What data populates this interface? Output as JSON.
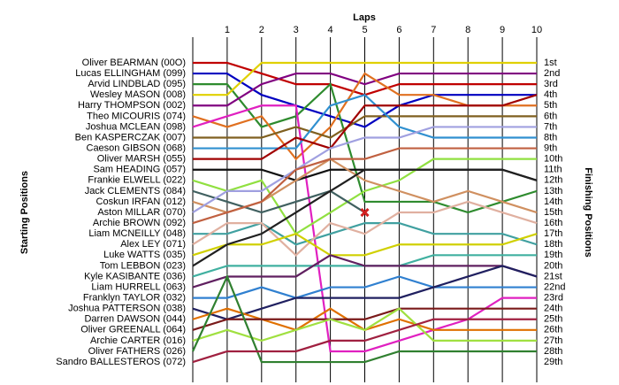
{
  "chart_data": {
    "type": "line",
    "x_label": "Laps",
    "y_label": "Starting Positions",
    "y2_label": "Finishing Positions",
    "x": [
      0,
      1,
      2,
      3,
      4,
      5,
      6,
      7,
      8,
      9,
      10
    ],
    "xlim": [
      0,
      10
    ],
    "xticks": [
      1,
      2,
      3,
      4,
      5,
      6,
      7,
      8,
      9,
      10
    ],
    "ylim": [
      30.9,
      -1.4
    ],
    "grid": true,
    "series": [
      {
        "name": "Oliver BEARMAN (00O)",
        "color": "#c00000",
        "values": [
          1,
          1,
          2,
          3,
          3,
          4,
          3,
          3,
          3,
          3,
          3
        ]
      },
      {
        "name": "Lucas ELLINGHAM (099)",
        "color": "#0000c0",
        "values": [
          2,
          2,
          4,
          5,
          6,
          7,
          5,
          4,
          4,
          4,
          4
        ]
      },
      {
        "name": "Arvid LINDBLAD (095)",
        "color": "#2e8b2e",
        "values": [
          3,
          3,
          7,
          6,
          3,
          14,
          14,
          14,
          15,
          14,
          13
        ]
      },
      {
        "name": "Wesley MASON (008)",
        "color": "#e0d000",
        "values": [
          4,
          4,
          1,
          1,
          1,
          1,
          1,
          1,
          1,
          1,
          1
        ]
      },
      {
        "name": "Harry THOMPSON (002)",
        "color": "#800080",
        "values": [
          5,
          5,
          3,
          2,
          2,
          3,
          2,
          2,
          2,
          2,
          2
        ]
      },
      {
        "name": "Theo MICOURIS (074)",
        "color": "#e07020",
        "values": [
          6,
          7,
          6,
          10,
          7,
          2,
          4,
          4,
          5,
          5,
          5
        ]
      },
      {
        "name": "Joshua MCLEAN (098)",
        "color": "#e020c0",
        "values": [
          7,
          6,
          5,
          5,
          28,
          28,
          27,
          26,
          25,
          23,
          23
        ]
      },
      {
        "name": "Ben KASPERCZAK (007)",
        "color": "#806020",
        "values": [
          8,
          8,
          8,
          7,
          8,
          6,
          6,
          6,
          6,
          6,
          6
        ]
      },
      {
        "name": "Caeson GIBSON (068)",
        "color": "#3090d0",
        "values": [
          9,
          9,
          9,
          9,
          5,
          4,
          7,
          8,
          8,
          8,
          8
        ]
      },
      {
        "name": "Oliver MARSH (055)",
        "color": "#a00000",
        "values": [
          10,
          10,
          10,
          8,
          9,
          5,
          5,
          5,
          5,
          5,
          4
        ]
      },
      {
        "name": "Sam HEADING (057)",
        "color": "#101010",
        "values": [
          11,
          11,
          11,
          12,
          11,
          11,
          11,
          11,
          11,
          11,
          12
        ]
      },
      {
        "name": "Frankie ELWELL (022)",
        "color": "#90e040",
        "values": [
          12,
          13,
          12,
          17,
          15,
          13,
          12,
          10,
          10,
          10,
          10
        ]
      },
      {
        "name": "Jack CLEMENTS (084)",
        "color": "#406060",
        "values": [
          13,
          14,
          15,
          14,
          13,
          15,
          null,
          null,
          null,
          null,
          null
        ]
      },
      {
        "name": "Coskun IRFAN (012)",
        "color": "#d09060",
        "values": [
          14,
          15,
          14,
          12,
          10,
          12,
          13,
          14,
          13,
          14,
          15
        ]
      },
      {
        "name": "Aston  MILLAR (070)",
        "color": "#a0a0e0",
        "values": [
          15,
          13,
          13,
          11,
          9,
          8,
          8,
          7,
          7,
          7,
          7
        ]
      },
      {
        "name": "Archie BROWN (092)",
        "color": "#c06040",
        "values": [
          16,
          15,
          14,
          11,
          10,
          10,
          9,
          9,
          9,
          9,
          9
        ]
      },
      {
        "name": "Liam MCNEILLY (048)",
        "color": "#40a0a0",
        "values": [
          17,
          17,
          16,
          18,
          17,
          16,
          16,
          17,
          17,
          17,
          18
        ]
      },
      {
        "name": "Alex LEY (071)",
        "color": "#e0b0a0",
        "values": [
          18,
          16,
          16,
          19,
          16,
          17,
          15,
          15,
          14,
          15,
          16
        ]
      },
      {
        "name": "Luke  WATTS (035)",
        "color": "#d0d000",
        "values": [
          19,
          18,
          18,
          17,
          19,
          19,
          18,
          18,
          18,
          18,
          17
        ]
      },
      {
        "name": "Tom LEBBON (023)",
        "color": "#202020",
        "values": [
          20,
          18,
          17,
          15,
          13,
          11,
          11,
          11,
          11,
          11,
          12
        ]
      },
      {
        "name": "Kyle  KASIBANTE (036)",
        "color": "#40b0a0",
        "values": [
          21,
          20,
          20,
          20,
          20,
          20,
          20,
          19,
          19,
          19,
          19
        ]
      },
      {
        "name": "Liam HURRELL (063)",
        "color": "#602060",
        "values": [
          22,
          21,
          21,
          21,
          19,
          20,
          20,
          20,
          20,
          20,
          21
        ]
      },
      {
        "name": "Franklyn  TAYLOR (032)",
        "color": "#3080d0",
        "values": [
          23,
          23,
          22,
          23,
          22,
          22,
          21,
          22,
          22,
          22,
          22
        ]
      },
      {
        "name": "Joshua PATTERSON (038)",
        "color": "#202060",
        "values": [
          24,
          25,
          24,
          23,
          23,
          23,
          23,
          22,
          21,
          20,
          21
        ]
      },
      {
        "name": "Darren DAWSON (044)",
        "color": "#e07000",
        "values": [
          25,
          24,
          25,
          26,
          24,
          26,
          25,
          26,
          26,
          26,
          26
        ]
      },
      {
        "name": "Oliver GREENALL (064)",
        "color": "#7a1a1a",
        "values": [
          26,
          25,
          25,
          25,
          25,
          25,
          24,
          24,
          24,
          24,
          24
        ]
      },
      {
        "name": "Archie CARTER (016)",
        "color": "#a0e040",
        "values": [
          27,
          26,
          27,
          26,
          25,
          26,
          24,
          27,
          27,
          27,
          27
        ]
      },
      {
        "name": "Oliver FATHERS (026)",
        "color": "#308030",
        "values": [
          28,
          21,
          29,
          29,
          29,
          29,
          28,
          28,
          28,
          28,
          28
        ]
      },
      {
        "name": "Sandro BALLESTEROS (072)",
        "color": "#a02040",
        "values": [
          29,
          28,
          28,
          28,
          27,
          27,
          26,
          25,
          25,
          25,
          25
        ]
      }
    ],
    "finishing_labels": [
      "1st",
      "2nd",
      "3rd",
      "4th",
      "5th",
      "6th",
      "7th",
      "8th",
      "9th",
      "10th",
      "11th",
      "12th",
      "13th",
      "14th",
      "15th",
      "16th",
      "17th",
      "18th",
      "19th",
      "20th",
      "21st",
      "22nd",
      "23rd",
      "24th",
      "25th",
      "26th",
      "27th",
      "28th",
      "29th"
    ],
    "markers": [
      {
        "x": 5,
        "y": 15,
        "color": "#d02020"
      }
    ]
  }
}
